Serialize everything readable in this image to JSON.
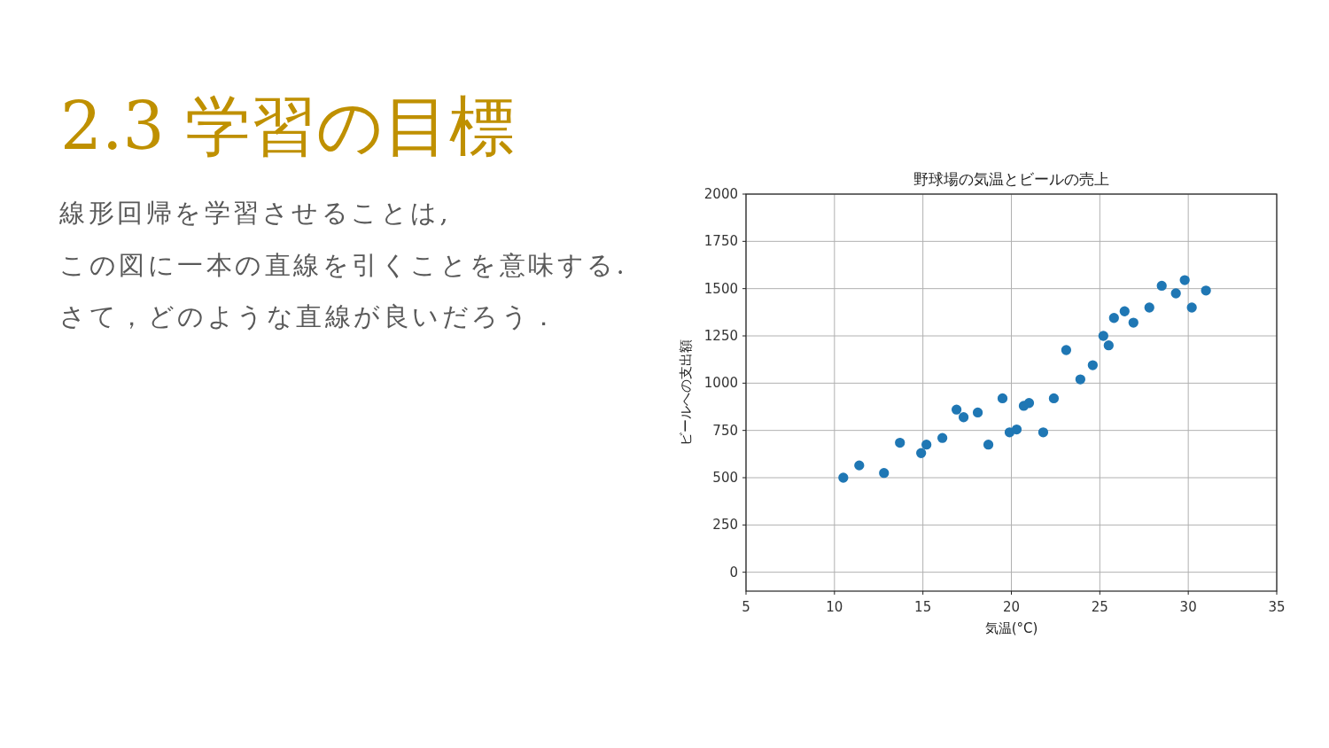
{
  "chart_data": {
    "type": "scatter",
    "title": "野球場の気温とビールの売上",
    "xlabel": "気温(°C)",
    "ylabel": "ビールへの支出額",
    "annotations": [
      "2.3 学習の目標",
      "線形回帰を学習させることは,",
      "この図に一本の直線を引くことを意味する.",
      "さて，どのような直線が良いだろう．"
    ],
    "x": [
      10.5,
      11.4,
      12.8,
      13.7,
      14.9,
      15.2,
      16.1,
      16.9,
      17.3,
      18.1,
      18.7,
      19.5,
      19.9,
      20.3,
      20.7,
      21.0,
      21.8,
      22.4,
      23.1,
      23.9,
      24.6,
      25.2,
      25.5,
      25.8,
      26.4,
      26.9,
      27.8,
      28.5,
      29.3,
      29.8,
      30.2,
      31.0
    ],
    "values": [
      500,
      565,
      525,
      685,
      630,
      675,
      710,
      860,
      820,
      845,
      675,
      920,
      740,
      755,
      880,
      895,
      740,
      920,
      1175,
      1020,
      1095,
      1250,
      1200,
      1345,
      1380,
      1320,
      1400,
      1515,
      1475,
      1545,
      1400,
      1490
    ],
    "color": "#1f77b4",
    "marker": "circle",
    "grid": true,
    "xlim": [
      5,
      35
    ],
    "xticks": [
      5,
      10,
      15,
      20,
      25,
      30,
      35
    ],
    "ylim": [
      -100,
      2000
    ],
    "yticks": [
      0,
      250,
      500,
      750,
      1000,
      1250,
      1500,
      1750,
      2000
    ]
  }
}
